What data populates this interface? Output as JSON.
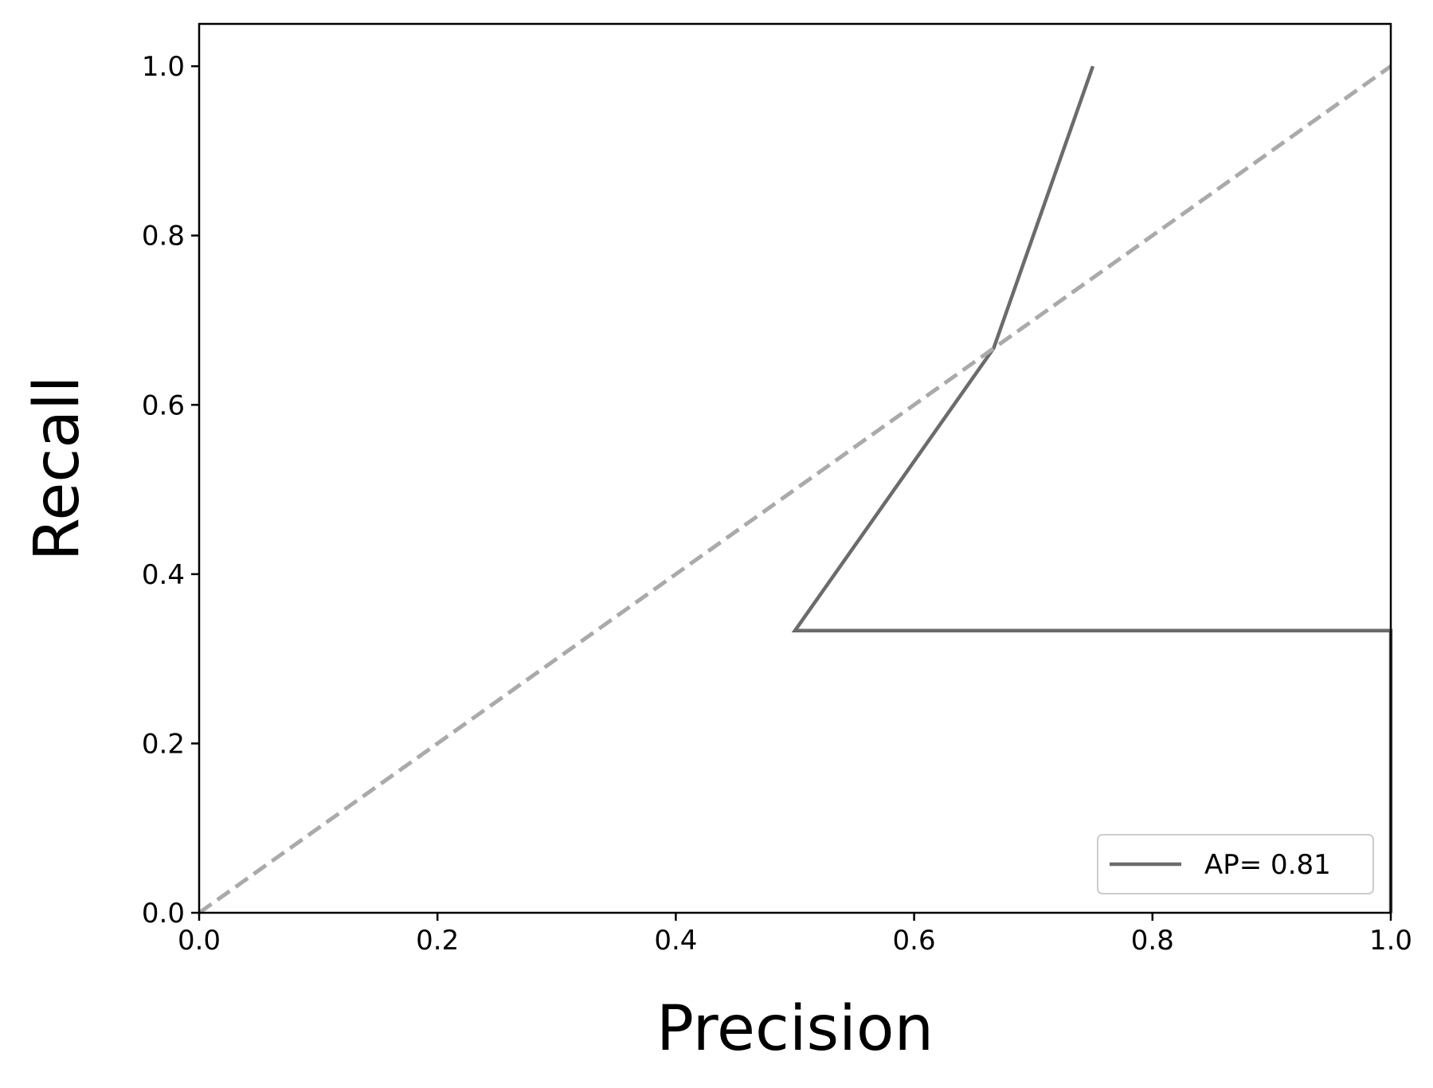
{
  "chart_data": {
    "type": "line",
    "title": "",
    "xlabel": "Precision",
    "ylabel": "Recall",
    "xlim": [
      0.0,
      1.0
    ],
    "ylim": [
      0.0,
      1.05
    ],
    "xticks": [
      0.0,
      0.2,
      0.4,
      0.6,
      0.8,
      1.0
    ],
    "yticks": [
      0.0,
      0.2,
      0.4,
      0.6,
      0.8,
      1.0
    ],
    "xtick_labels": [
      "0.0",
      "0.2",
      "0.4",
      "0.6",
      "0.8",
      "1.0"
    ],
    "ytick_labels": [
      "0.0",
      "0.2",
      "0.4",
      "0.6",
      "0.8",
      "1.0"
    ],
    "grid": false,
    "legend_position": "bottom-right",
    "series": [
      {
        "name": "AP= 0.81",
        "style": "solid",
        "color": "#6b6b6b",
        "x": [
          0.75,
          0.6667,
          0.5,
          1.0,
          1.0
        ],
        "y": [
          1.0,
          0.6667,
          0.3333,
          0.3333,
          0.0
        ]
      },
      {
        "style": "dashed",
        "color": "#aaaaaa",
        "x": [
          0.0,
          1.0
        ],
        "y": [
          0.0,
          1.0
        ]
      }
    ]
  }
}
